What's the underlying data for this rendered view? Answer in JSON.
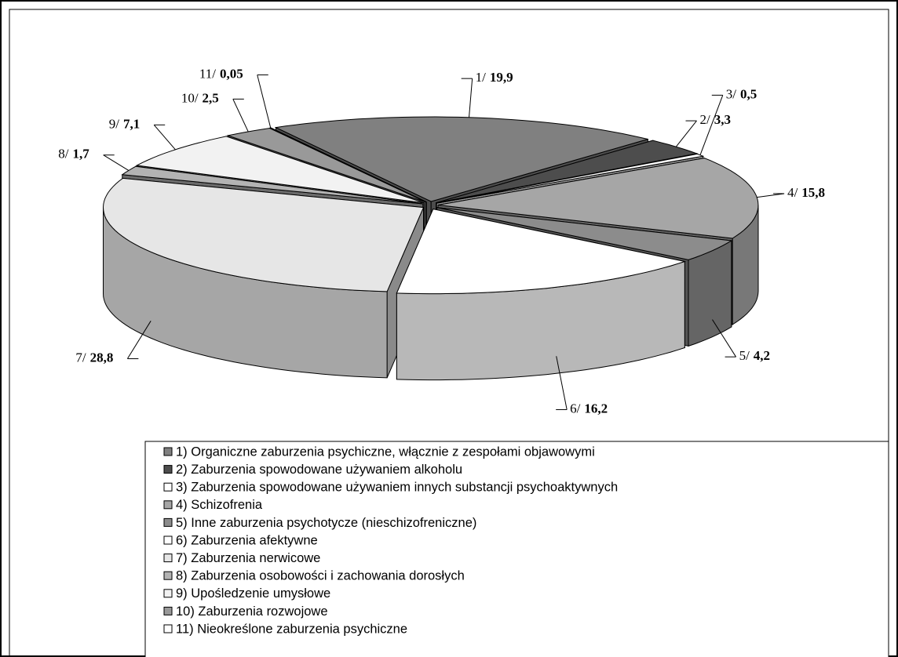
{
  "chart_data": {
    "type": "pie3d",
    "categories": [
      "1) Organiczne zaburzenia psychiczne, włącznie z zespołami objawowymi",
      "2) Zaburzenia spowodowane używaniem alkoholu",
      "3) Zaburzenia spowodowane używaniem innych substancji psychoaktywnych",
      "4) Schizofrenia",
      "5) Inne zaburzenia psychotycze (nieschizofreniczne)",
      "6) Zaburzenia afektywne",
      "7) Zaburzenia nerwicowe",
      "8) Zaburzenia osobowości i zachowania dorosłych",
      "9) Upośledzenie umysłowe",
      "10) Zaburzenia rozwojowe",
      "11) Nieokreślone zaburzenia psychiczne"
    ],
    "slice_numbers": [
      "1/",
      "2/",
      "3/",
      "4/",
      "5/",
      "6/",
      "7/",
      "8/",
      "9/",
      "10/",
      "11/"
    ],
    "values": [
      19.9,
      3.3,
      0.5,
      15.8,
      4.2,
      16.2,
      28.8,
      1.7,
      7.1,
      2.5,
      0.05
    ],
    "value_labels": [
      "19,9",
      "3,3",
      "0,5",
      "15,8",
      "4,2",
      "16,2",
      "28,8",
      "1,7",
      "7,1",
      "2,5",
      "0,05"
    ],
    "colors": [
      "#808080",
      "#4d4d4d",
      "#ffffff",
      "#a6a6a6",
      "#8c8c8c",
      "#ffffff",
      "#e6e6e6",
      "#b3b3b3",
      "#f2f2f2",
      "#999999",
      "#ffffff"
    ]
  }
}
